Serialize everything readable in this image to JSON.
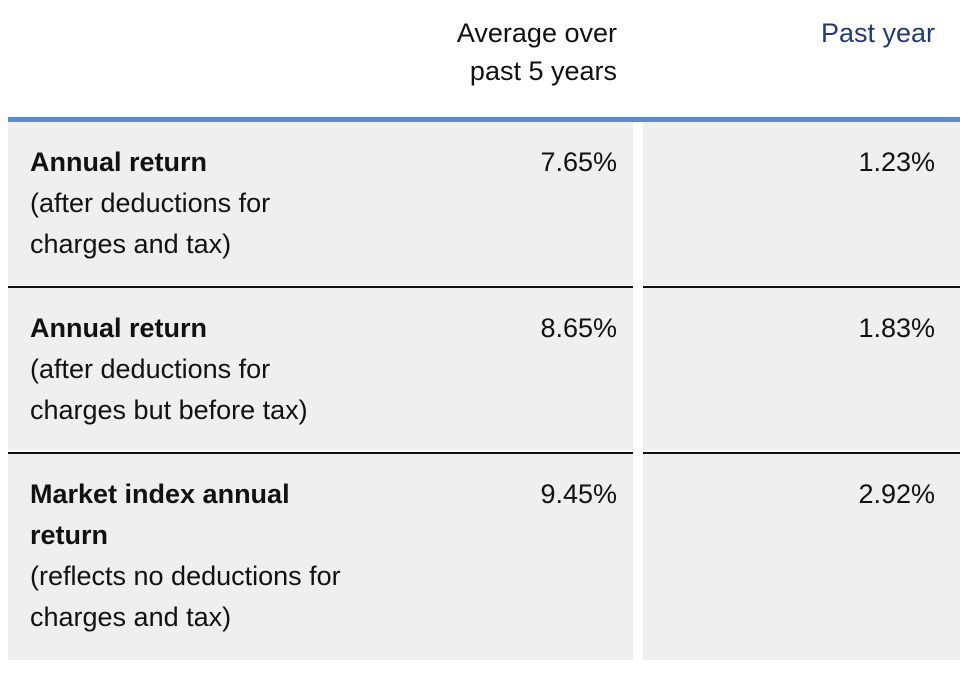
{
  "table": {
    "headers": [
      "Average over past 5 years",
      "Past year"
    ],
    "rows": [
      {
        "title": "Annual return",
        "note": "(after deductions for charges and tax)",
        "values": [
          "7.65%",
          "1.23%"
        ]
      },
      {
        "title": "Annual return",
        "note": "(after deductions for charges but before tax)",
        "values": [
          "8.65%",
          "1.83%"
        ]
      },
      {
        "title": "Market index annual return",
        "note": "(reflects no deductions for charges and tax)",
        "values": [
          "9.45%",
          "2.92%"
        ]
      }
    ]
  }
}
